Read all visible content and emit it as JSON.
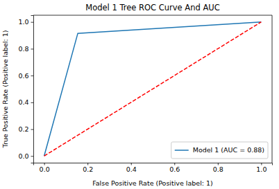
{
  "chart_data": {
    "type": "line",
    "title": "Model 1 Tree ROC Curve And AUC",
    "x_label": "False Positive Rate (Positive label: 1)",
    "y_label": "True Positive Rate (Positive label: 1)",
    "xlim": [
      -0.05,
      1.05
    ],
    "ylim": [
      -0.05,
      1.05
    ],
    "xticks": [
      {
        "value": 0,
        "label": "0.0"
      },
      0.2,
      0.4,
      0.6,
      0.8,
      {
        "value": 1,
        "label": "1.0"
      }
    ],
    "yticks": [
      {
        "value": 0,
        "label": "0.0"
      },
      0.2,
      0.4,
      0.6,
      0.8,
      {
        "value": 1,
        "label": "1.0"
      }
    ],
    "legend": "lower right",
    "grid": false,
    "series": [
      {
        "name": "Model 1 (AUC = 0.88)",
        "color": "#1f77b4",
        "line_style": "solid",
        "x": [
          0,
          0.155,
          1
        ],
        "values": [
          0,
          0.915,
          1
        ]
      },
      {
        "color": "red",
        "line_style": "dashed",
        "x": [
          0,
          1
        ],
        "values": [
          0,
          1
        ]
      }
    ]
  }
}
